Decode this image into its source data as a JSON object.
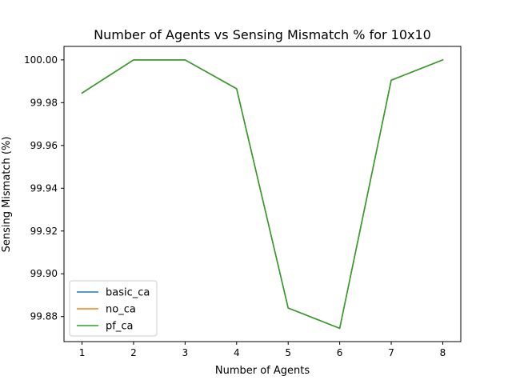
{
  "chart_data": {
    "type": "line",
    "title": "Number of Agents vs Sensing Mismatch % for 10x10",
    "xlabel": "Number of Agents",
    "ylabel": "Sensing Mismatch (%)",
    "x": [
      1,
      2,
      3,
      4,
      5,
      6,
      7,
      8
    ],
    "xlim": [
      0.65,
      8.35
    ],
    "ylim": [
      99.8683,
      100.0063
    ],
    "xticks": [
      1,
      2,
      3,
      4,
      5,
      6,
      7,
      8
    ],
    "yticks": [
      99.88,
      99.9,
      99.92,
      99.94,
      99.96,
      99.98,
      100.0
    ],
    "ytick_labels": [
      "99.88",
      "99.90",
      "99.92",
      "99.94",
      "99.96",
      "99.98",
      "100.00"
    ],
    "grid": false,
    "legend_position": "lower-left",
    "series": [
      {
        "name": "basic_ca",
        "color": "#1f77b4",
        "values": [
          99.9845,
          100.0,
          100.0,
          99.9865,
          99.884,
          99.8745,
          99.9905,
          100.0
        ]
      },
      {
        "name": "no_ca",
        "color": "#ff7f0e",
        "values": [
          99.9845,
          100.0,
          100.0,
          99.9865,
          99.884,
          99.8745,
          99.9905,
          100.0
        ]
      },
      {
        "name": "pf_ca",
        "color": "#2ca02c",
        "values": [
          99.9845,
          100.0,
          100.0,
          99.9865,
          99.884,
          99.8745,
          99.9905,
          100.0
        ]
      }
    ]
  }
}
